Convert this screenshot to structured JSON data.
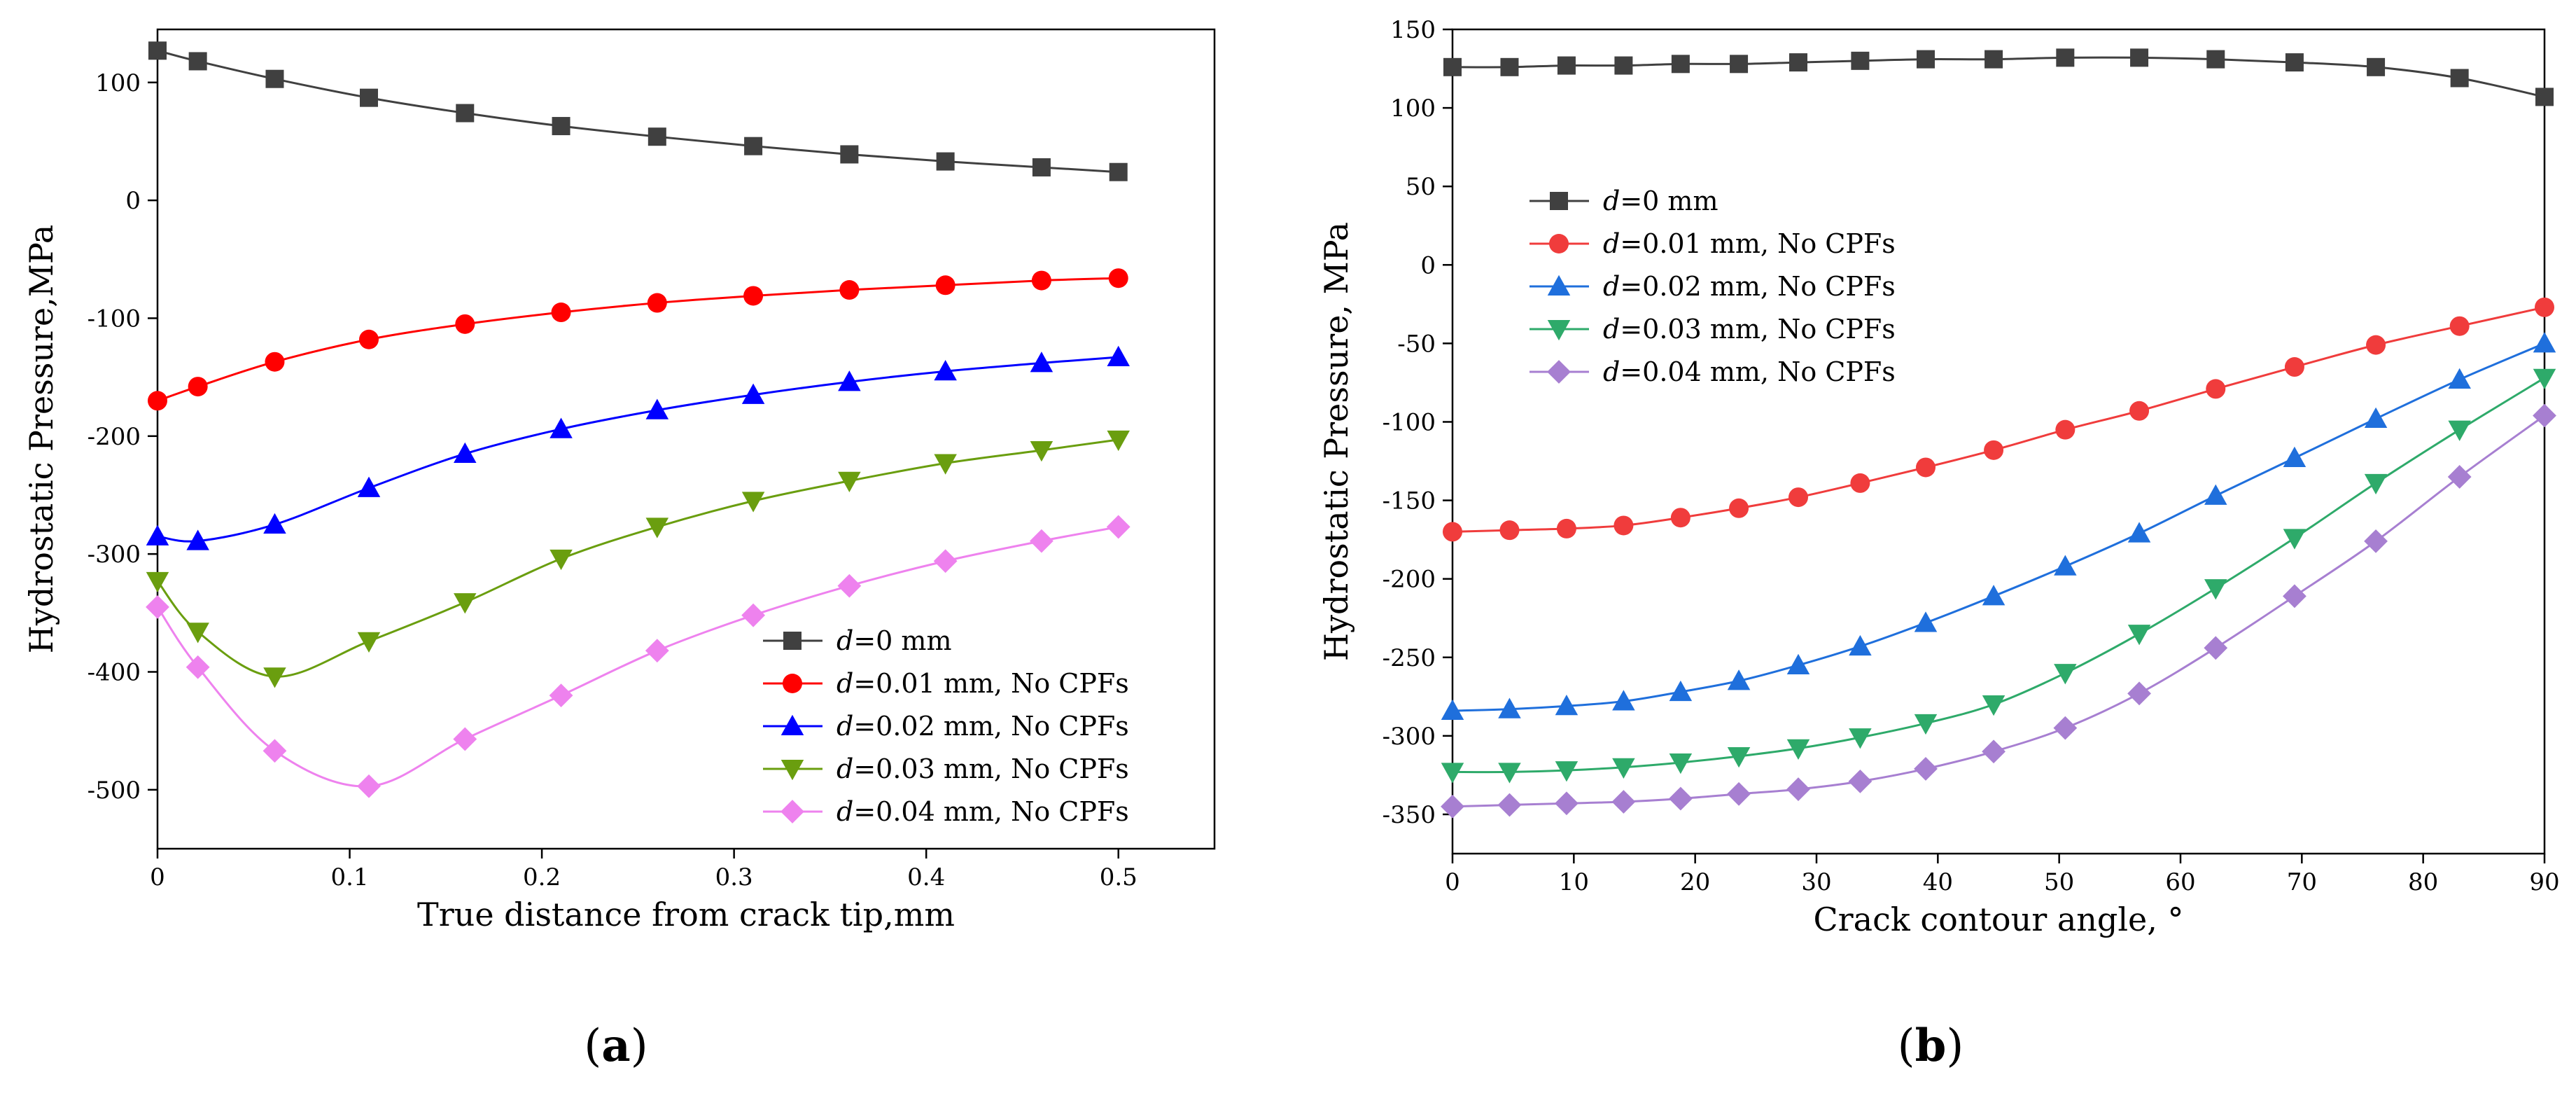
{
  "figure": {
    "panels": [
      {
        "paren_open": "(",
        "letter": "a",
        "paren_close": ")"
      },
      {
        "paren_open": "(",
        "letter": "b",
        "paren_close": ")"
      }
    ]
  },
  "chart_data": [
    {
      "type": "line",
      "title": "",
      "xlabel": "True distance from crack tip,mm",
      "ylabel": "Hydrostatic Pressure,MPa",
      "xlim": [
        0,
        0.55
      ],
      "ylim": [
        -550,
        145
      ],
      "xticks": [
        0,
        0.1,
        0.2,
        0.3,
        0.4,
        0.5
      ],
      "xtick_labels": [
        "0",
        "0.1",
        "0.2",
        "0.3",
        "0.4",
        "0.5"
      ],
      "yticks": [
        100,
        0,
        -100,
        -200,
        -300,
        -400,
        -500
      ],
      "ytick_labels": [
        "100",
        "0",
        "-100",
        "-200",
        "-300",
        "-400",
        "-500"
      ],
      "legend_position": "lower-right",
      "grid": false,
      "series": [
        {
          "name": "d=0 mm",
          "label_italic": "d",
          "label_rest": "=0 mm",
          "color": "#404040",
          "marker": "square",
          "x": [
            0,
            0.021,
            0.061,
            0.11,
            0.16,
            0.21,
            0.26,
            0.31,
            0.36,
            0.41,
            0.46,
            0.5
          ],
          "y": [
            127,
            118,
            103,
            87,
            74,
            63,
            54,
            46,
            39,
            33,
            28,
            24
          ]
        },
        {
          "name": "d=0.01 mm, No CPFs",
          "label_italic": "d",
          "label_rest": "=0.01 mm, No CPFs",
          "color": "#ff0000",
          "marker": "circle",
          "x": [
            0,
            0.021,
            0.061,
            0.11,
            0.16,
            0.21,
            0.26,
            0.31,
            0.36,
            0.41,
            0.46,
            0.5
          ],
          "y": [
            -170,
            -158,
            -137,
            -118,
            -105,
            -95,
            -87,
            -81,
            -76,
            -72,
            -68,
            -66
          ]
        },
        {
          "name": "d=0.02 mm, No CPFs",
          "label_italic": "d",
          "label_rest": "=0.02 mm, No CPFs",
          "color": "#0000ff",
          "marker": "triangle-up",
          "x": [
            0,
            0.021,
            0.061,
            0.11,
            0.16,
            0.21,
            0.26,
            0.31,
            0.36,
            0.41,
            0.46,
            0.5
          ],
          "y": [
            -285,
            -289,
            -275,
            -244,
            -215,
            -194,
            -178,
            -165,
            -154,
            -145,
            -138,
            -133
          ]
        },
        {
          "name": "d=0.03 mm, No CPFs",
          "label_italic": "d",
          "label_rest": "=0.03 mm, No CPFs",
          "color": "#6a9e0f",
          "marker": "triangle-down",
          "x": [
            0,
            0.021,
            0.061,
            0.11,
            0.16,
            0.21,
            0.26,
            0.31,
            0.36,
            0.41,
            0.46,
            0.5
          ],
          "y": [
            -323,
            -366,
            -404,
            -374,
            -341,
            -304,
            -277,
            -255,
            -238,
            -223,
            -212,
            -203
          ]
        },
        {
          "name": "d=0.04 mm, No CPFs",
          "label_italic": "d",
          "label_rest": "=0.04 mm, No CPFs",
          "color": "#ee82ee",
          "marker": "diamond",
          "x": [
            0,
            0.021,
            0.061,
            0.11,
            0.16,
            0.21,
            0.26,
            0.31,
            0.36,
            0.41,
            0.46,
            0.5
          ],
          "y": [
            -345,
            -396,
            -467,
            -497,
            -457,
            -420,
            -382,
            -352,
            -327,
            -306,
            -289,
            -277
          ]
        }
      ]
    },
    {
      "type": "line",
      "title": "",
      "xlabel": "Crack contour angle, °",
      "ylabel": "Hydrostatic Pressure, MPa",
      "xlim": [
        0,
        90
      ],
      "ylim": [
        -375,
        150
      ],
      "xticks": [
        0,
        10,
        20,
        30,
        40,
        50,
        60,
        70,
        80,
        90
      ],
      "xtick_labels": [
        "0",
        "10",
        "20",
        "30",
        "40",
        "50",
        "60",
        "70",
        "80",
        "90"
      ],
      "yticks": [
        150,
        100,
        50,
        0,
        -50,
        -100,
        -150,
        -200,
        -250,
        -300,
        -350
      ],
      "ytick_labels": [
        "150",
        "100",
        "50",
        "0",
        "-50",
        "-100",
        "-150",
        "-200",
        "-250",
        "-300",
        "-350"
      ],
      "legend_position": "upper-left",
      "grid": false,
      "series": [
        {
          "name": "d=0 mm",
          "label_italic": "d",
          "label_rest": "=0 mm",
          "color": "#404040",
          "marker": "square",
          "x": [
            0,
            4.7,
            9.4,
            14.1,
            18.8,
            23.6,
            28.5,
            33.6,
            39.0,
            44.6,
            50.5,
            56.6,
            62.9,
            69.4,
            76.1,
            83.0,
            90
          ],
          "y": [
            126,
            126,
            127,
            127,
            128,
            128,
            129,
            130,
            131,
            131,
            132,
            132,
            131,
            129,
            126,
            119,
            107
          ]
        },
        {
          "name": "d=0.01 mm, No CPFs",
          "label_italic": "d",
          "label_rest": "=0.01 mm, No CPFs",
          "color": "#f03c3c",
          "marker": "circle",
          "x": [
            0,
            4.7,
            9.4,
            14.1,
            18.8,
            23.6,
            28.5,
            33.6,
            39.0,
            44.6,
            50.5,
            56.6,
            62.9,
            69.4,
            76.1,
            83.0,
            90
          ],
          "y": [
            -170,
            -169,
            -168,
            -166,
            -161,
            -155,
            -148,
            -139,
            -129,
            -118,
            -105,
            -93,
            -79,
            -65,
            -51,
            -39,
            -27
          ]
        },
        {
          "name": "d=0.02 mm, No CPFs",
          "label_italic": "d",
          "label_rest": "=0.02 mm, No CPFs",
          "color": "#1f6fdc",
          "marker": "triangle-up",
          "x": [
            0,
            4.7,
            9.4,
            14.1,
            18.8,
            23.6,
            28.5,
            33.6,
            39.0,
            44.6,
            50.5,
            56.6,
            62.9,
            69.4,
            76.1,
            83.0,
            90
          ],
          "y": [
            -284,
            -283,
            -281,
            -278,
            -272,
            -265,
            -255,
            -243,
            -228,
            -211,
            -192,
            -171,
            -147,
            -123,
            -98,
            -73,
            -50
          ]
        },
        {
          "name": "d=0.03 mm, No CPFs",
          "label_italic": "d",
          "label_rest": "=0.03 mm, No CPFs",
          "color": "#2eaa6a",
          "marker": "triangle-down",
          "x": [
            0,
            4.7,
            9.4,
            14.1,
            18.8,
            23.6,
            28.5,
            33.6,
            39.0,
            44.6,
            50.5,
            56.6,
            62.9,
            69.4,
            76.1,
            83.0,
            90
          ],
          "y": [
            -323,
            -323,
            -322,
            -320,
            -317,
            -313,
            -308,
            -301,
            -292,
            -280,
            -260,
            -235,
            -206,
            -174,
            -139,
            -105,
            -72
          ]
        },
        {
          "name": "d=0.04 mm, No CPFs",
          "label_italic": "d",
          "label_rest": "=0.04 mm, No CPFs",
          "color": "#a77fd1",
          "marker": "diamond",
          "x": [
            0,
            4.7,
            9.4,
            14.1,
            18.8,
            23.6,
            28.5,
            33.6,
            39.0,
            44.6,
            50.5,
            56.6,
            62.9,
            69.4,
            76.1,
            83.0,
            90
          ],
          "y": [
            -345,
            -344,
            -343,
            -342,
            -340,
            -337,
            -334,
            -329,
            -321,
            -310,
            -295,
            -273,
            -244,
            -211,
            -176,
            -135,
            -96
          ]
        }
      ]
    }
  ]
}
